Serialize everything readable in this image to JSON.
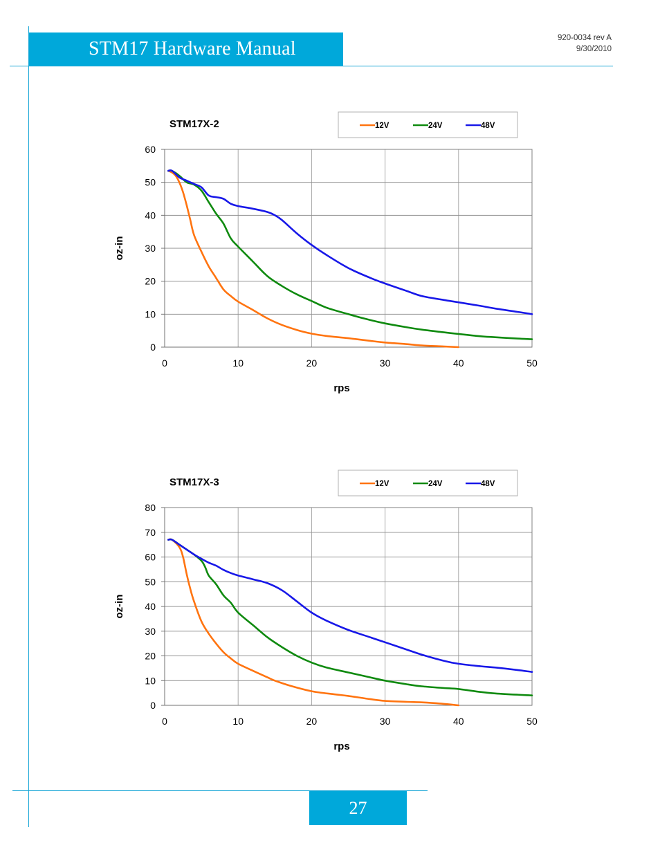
{
  "header": {
    "title": "STM17 Hardware Manual",
    "doc_number": "920-0034 rev A",
    "date": "9/30/2010"
  },
  "footer": {
    "page_number": "27"
  },
  "colors": {
    "accent": "#00a8da",
    "v12": "#ff7410",
    "v24": "#0f8a0f",
    "v48": "#1818e8"
  },
  "chart_data": [
    {
      "type": "line",
      "title": "STM17X-2",
      "xlabel": "rps",
      "ylabel": "oz-in",
      "xlim": [
        0,
        50
      ],
      "ylim": [
        0,
        60
      ],
      "xticks": [
        "0",
        "10",
        "20",
        "30",
        "40",
        "50"
      ],
      "yticks": [
        "0",
        "10",
        "20",
        "30",
        "40",
        "50",
        "60"
      ],
      "grid": true,
      "legend": "top-right",
      "series": [
        {
          "name": "12V",
          "color": "#ff7410",
          "points": [
            [
              0.5,
              53.5
            ],
            [
              1,
              53
            ],
            [
              1.5,
              52
            ],
            [
              2,
              50
            ],
            [
              2.5,
              47
            ],
            [
              3,
              43
            ],
            [
              3.5,
              38.5
            ],
            [
              4,
              34
            ],
            [
              5,
              29
            ],
            [
              6,
              24.5
            ],
            [
              7,
              21
            ],
            [
              8,
              17.5
            ],
            [
              9,
              15.5
            ],
            [
              10,
              13.8
            ],
            [
              12,
              11.3
            ],
            [
              14,
              8.7
            ],
            [
              16,
              6.7
            ],
            [
              18,
              5.2
            ],
            [
              20,
              4.1
            ],
            [
              22,
              3.4
            ],
            [
              25,
              2.7
            ],
            [
              28,
              1.9
            ],
            [
              30,
              1.4
            ],
            [
              33,
              0.9
            ],
            [
              35,
              0.5
            ],
            [
              38,
              0.2
            ],
            [
              40,
              0
            ]
          ]
        },
        {
          "name": "24V",
          "color": "#0f8a0f",
          "points": [
            [
              0.5,
              53.5
            ],
            [
              1,
              53.5
            ],
            [
              2,
              52
            ],
            [
              3,
              50
            ],
            [
              4,
              49.3
            ],
            [
              5,
              47.5
            ],
            [
              6,
              44
            ],
            [
              7,
              40.5
            ],
            [
              8,
              37.5
            ],
            [
              9,
              33
            ],
            [
              10,
              30.5
            ],
            [
              12,
              26
            ],
            [
              14,
              21.5
            ],
            [
              16,
              18.5
            ],
            [
              18,
              16
            ],
            [
              20,
              14
            ],
            [
              22,
              12
            ],
            [
              25,
              10
            ],
            [
              28,
              8.2
            ],
            [
              30,
              7.2
            ],
            [
              33,
              6
            ],
            [
              35,
              5.3
            ],
            [
              38,
              4.5
            ],
            [
              40,
              4
            ],
            [
              43,
              3.3
            ],
            [
              45,
              3
            ],
            [
              48,
              2.6
            ],
            [
              50,
              2.4
            ]
          ]
        },
        {
          "name": "48V",
          "color": "#1818e8",
          "points": [
            [
              0.5,
              53.5
            ],
            [
              1,
              53.5
            ],
            [
              2,
              51.5
            ],
            [
              3,
              50.5
            ],
            [
              4,
              49.5
            ],
            [
              5,
              48.5
            ],
            [
              6,
              46
            ],
            [
              7,
              45.5
            ],
            [
              8,
              45
            ],
            [
              9,
              43.5
            ],
            [
              10,
              42.8
            ],
            [
              12,
              42
            ],
            [
              14,
              41
            ],
            [
              15,
              40
            ],
            [
              16,
              38.5
            ],
            [
              18,
              34.5
            ],
            [
              20,
              31
            ],
            [
              22,
              28
            ],
            [
              25,
              24
            ],
            [
              28,
              21
            ],
            [
              30,
              19.3
            ],
            [
              33,
              17
            ],
            [
              35,
              15.5
            ],
            [
              38,
              14.3
            ],
            [
              40,
              13.6
            ],
            [
              43,
              12.5
            ],
            [
              45,
              11.7
            ],
            [
              48,
              10.7
            ],
            [
              50,
              10
            ]
          ]
        }
      ]
    },
    {
      "type": "line",
      "title": "STM17X-3",
      "xlabel": "rps",
      "ylabel": "oz-in",
      "xlim": [
        0,
        50
      ],
      "ylim": [
        0,
        80
      ],
      "xticks": [
        "0",
        "10",
        "20",
        "30",
        "40",
        "50"
      ],
      "yticks": [
        "0",
        "10",
        "20",
        "30",
        "40",
        "50",
        "60",
        "70",
        "80"
      ],
      "grid": true,
      "legend": "top-right",
      "series": [
        {
          "name": "12V",
          "color": "#ff7410",
          "points": [
            [
              0.5,
              67
            ],
            [
              1,
              67
            ],
            [
              2,
              64
            ],
            [
              2.5,
              60
            ],
            [
              3,
              53
            ],
            [
              3.5,
              47
            ],
            [
              4,
              42
            ],
            [
              5,
              34
            ],
            [
              6,
              29
            ],
            [
              7,
              25
            ],
            [
              8,
              21.5
            ],
            [
              9,
              19
            ],
            [
              10,
              16.8
            ],
            [
              12,
              14
            ],
            [
              14,
              11.3
            ],
            [
              15,
              10
            ],
            [
              17,
              8
            ],
            [
              20,
              5.7
            ],
            [
              23,
              4.5
            ],
            [
              25,
              3.8
            ],
            [
              28,
              2.5
            ],
            [
              30,
              1.8
            ],
            [
              33,
              1.4
            ],
            [
              35,
              1.2
            ],
            [
              38,
              0.6
            ],
            [
              40,
              0
            ]
          ]
        },
        {
          "name": "24V",
          "color": "#0f8a0f",
          "points": [
            [
              0.5,
              67
            ],
            [
              1,
              67
            ],
            [
              2,
              65
            ],
            [
              3,
              63
            ],
            [
              4,
              61
            ],
            [
              5,
              58.5
            ],
            [
              5.5,
              56
            ],
            [
              6,
              52.5
            ],
            [
              7,
              49
            ],
            [
              8,
              44.5
            ],
            [
              9,
              41.5
            ],
            [
              10,
              37.5
            ],
            [
              12,
              32.5
            ],
            [
              14,
              27.5
            ],
            [
              16,
              23.5
            ],
            [
              18,
              20
            ],
            [
              20,
              17.3
            ],
            [
              22,
              15.3
            ],
            [
              25,
              13.3
            ],
            [
              28,
              11.3
            ],
            [
              30,
              10
            ],
            [
              33,
              8.5
            ],
            [
              35,
              7.7
            ],
            [
              38,
              7
            ],
            [
              40,
              6.6
            ],
            [
              43,
              5.4
            ],
            [
              45,
              4.8
            ],
            [
              48,
              4.3
            ],
            [
              50,
              4
            ]
          ]
        },
        {
          "name": "48V",
          "color": "#1818e8",
          "points": [
            [
              0.5,
              67
            ],
            [
              1,
              67
            ],
            [
              2,
              65
            ],
            [
              3,
              63
            ],
            [
              4,
              61
            ],
            [
              5,
              59.3
            ],
            [
              6,
              57.7
            ],
            [
              7,
              56.5
            ],
            [
              8,
              54.8
            ],
            [
              9,
              53.5
            ],
            [
              10,
              52.5
            ],
            [
              12,
              51
            ],
            [
              14,
              49.4
            ],
            [
              16,
              46.5
            ],
            [
              18,
              42
            ],
            [
              20,
              37.5
            ],
            [
              22,
              34.3
            ],
            [
              25,
              30.5
            ],
            [
              28,
              27.5
            ],
            [
              30,
              25.5
            ],
            [
              33,
              22.5
            ],
            [
              35,
              20.5
            ],
            [
              38,
              18
            ],
            [
              40,
              16.8
            ],
            [
              43,
              15.8
            ],
            [
              45,
              15.3
            ],
            [
              48,
              14.3
            ],
            [
              50,
              13.5
            ]
          ]
        }
      ]
    }
  ]
}
